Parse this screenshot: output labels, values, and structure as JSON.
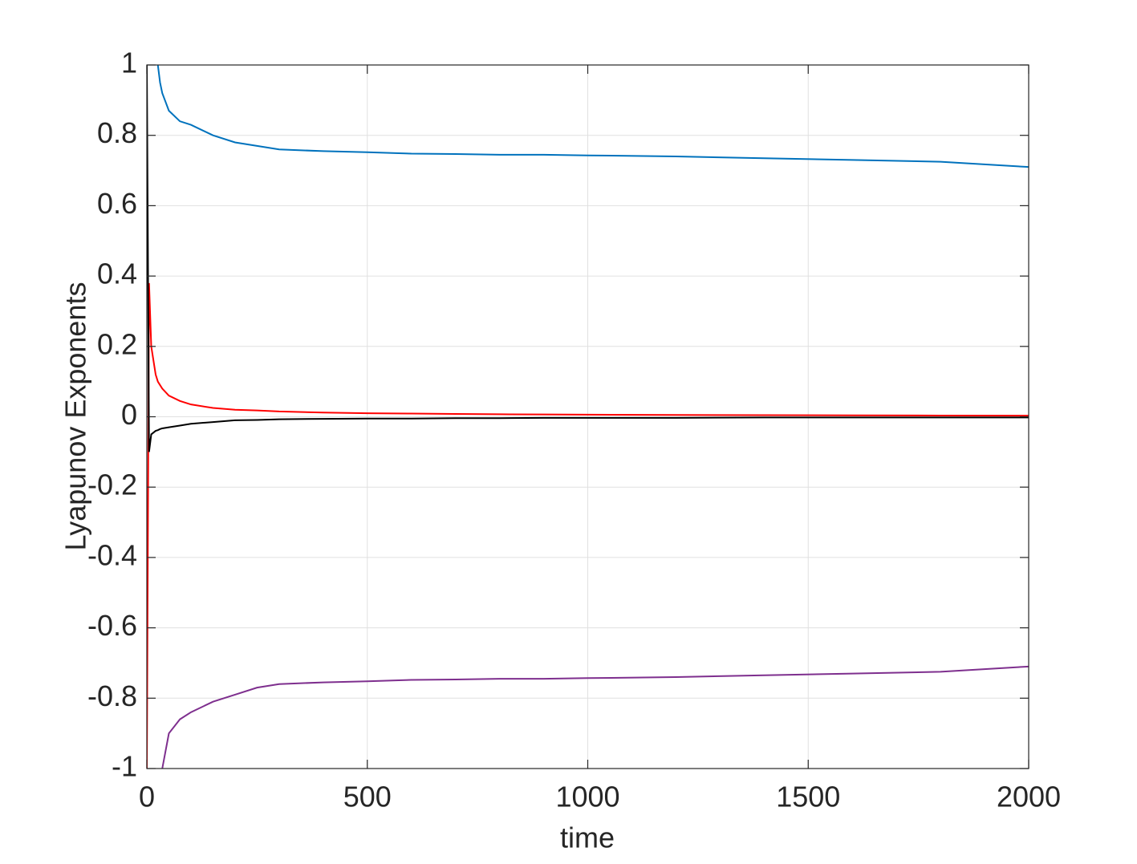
{
  "chart_data": {
    "type": "line",
    "x_label": "time",
    "y_label": "Lyapunov Exponents",
    "x": [
      0,
      5,
      10,
      20,
      25,
      30,
      35,
      50,
      75,
      100,
      150,
      200,
      250,
      300,
      400,
      500,
      600,
      700,
      800,
      900,
      1000,
      1200,
      1400,
      1600,
      1800,
      2000
    ],
    "series": [
      {
        "color": "#0072bd",
        "values": [
          null,
          null,
          null,
          null,
          1.0,
          0.95,
          0.92,
          0.87,
          0.84,
          0.83,
          0.8,
          0.78,
          0.77,
          0.76,
          0.755,
          0.752,
          0.748,
          0.747,
          0.745,
          0.745,
          0.743,
          0.74,
          0.735,
          0.73,
          0.725,
          0.71
        ]
      },
      {
        "color": "#7e2f8e",
        "values": [
          null,
          null,
          null,
          null,
          null,
          null,
          -1.0,
          -0.9,
          -0.86,
          -0.84,
          -0.81,
          -0.79,
          -0.77,
          -0.76,
          -0.755,
          -0.752,
          -0.748,
          -0.747,
          -0.745,
          -0.745,
          -0.743,
          -0.74,
          -0.735,
          -0.73,
          -0.725,
          -0.71
        ]
      },
      {
        "color": "#ff0000",
        "values": [
          -1,
          0.38,
          0.2,
          0.12,
          0.1,
          0.09,
          0.08,
          0.06,
          0.045,
          0.035,
          0.025,
          0.02,
          0.018,
          0.015,
          0.012,
          0.01,
          0.009,
          0.008,
          0.007,
          0.0065,
          0.006,
          0.005,
          0.0045,
          0.004,
          0.0035,
          0.003
        ]
      },
      {
        "color": "#000000",
        "values": [
          1,
          -0.1,
          -0.05,
          -0.04,
          -0.038,
          -0.035,
          -0.033,
          -0.03,
          -0.025,
          -0.02,
          -0.015,
          -0.01,
          -0.009,
          -0.007,
          -0.006,
          -0.005,
          -0.005,
          -0.004,
          -0.004,
          -0.003,
          -0.003,
          -0.003,
          -0.002,
          -0.002,
          -0.002,
          -0.002
        ]
      }
    ],
    "xlim": [
      0,
      2000
    ],
    "xticks": [
      0,
      500,
      1000,
      1500,
      2000
    ],
    "ylim": [
      -1,
      1
    ],
    "yticks": [
      -1,
      -0.8,
      -0.6,
      -0.4,
      -0.2,
      0,
      0.2,
      0.4,
      0.6,
      0.8,
      1
    ],
    "grid": true
  }
}
